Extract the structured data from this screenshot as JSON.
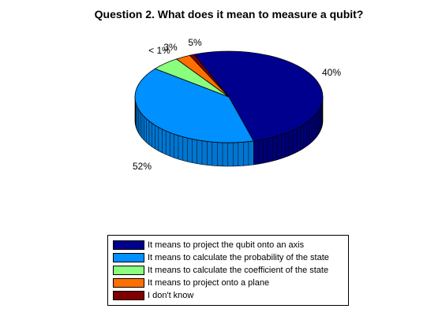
{
  "chart_data": {
    "type": "pie",
    "title": "Question 2. What does it mean to measure a qubit?",
    "slices": [
      {
        "label": "It means to project the qubit onto an axis",
        "value": 52,
        "text": "52%",
        "color": "#00008f"
      },
      {
        "label": "It means to calculate the probability of the state",
        "value": 40,
        "text": "40%",
        "color": "#0090ff"
      },
      {
        "label": "It means to calculate the coefficient of the state",
        "value": 5,
        "text": "5%",
        "color": "#8aff7e"
      },
      {
        "label": "It means to project onto a plane",
        "value": 2.6,
        "text": "3%",
        "color": "#ff6f00"
      },
      {
        "label": "I don't know",
        "value": 0.8,
        "text": "< 1%",
        "color": "#7f0000"
      }
    ],
    "legend_position": "bottom"
  }
}
